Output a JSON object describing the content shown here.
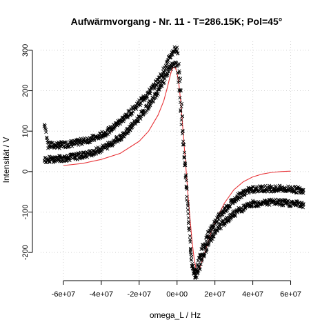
{
  "chart_data": {
    "type": "scatter",
    "title": "Aufwärmvorgang - Nr. 11 - T=286.15K; Pol=45°",
    "xlabel": "omega_L / Hz",
    "ylabel": "Intensität / V",
    "xlim": [
      -72000000,
      70000000
    ],
    "ylim": [
      -268,
      322
    ],
    "x_ticks": [
      -60000000,
      -40000000,
      -20000000,
      0,
      20000000,
      40000000,
      60000000
    ],
    "x_tick_labels": [
      "-6e+07",
      "-4e+07",
      "-2e+07",
      "0e+00",
      "2e+07",
      "4e+07",
      "6e+07"
    ],
    "y_ticks": [
      -200,
      -100,
      0,
      100,
      200,
      300
    ],
    "y_tick_labels": [
      "-200",
      "-100",
      "0",
      "100",
      "200",
      "300"
    ],
    "grid": true,
    "marker": "x",
    "series": [
      {
        "kind": "points",
        "color": "#000000",
        "branches": [
          {
            "x": [
              -70000000,
              -69000000,
              -68000000,
              -66000000,
              -62000000,
              -58000000,
              -54000000,
              -50000000,
              -46000000,
              -42000000,
              -38000000,
              -34000000,
              -30000000,
              -26000000,
              -22000000,
              -18000000,
              -14000000,
              -10000000,
              -7000000,
              -5000000,
              -3000000,
              -1000000,
              0,
              1000000,
              2000000,
              3000000,
              4000000,
              5000000,
              6000000,
              7000000,
              8000000,
              9000000,
              10000000,
              11000000,
              13000000,
              16000000,
              20000000,
              24000000,
              28000000,
              32000000,
              36000000,
              40000000,
              46000000,
              52000000,
              58000000,
              64000000,
              67000000
            ],
            "y": [
              115,
              95,
              65,
              65,
              65,
              68,
              70,
              75,
              80,
              85,
              95,
              108,
              125,
              140,
              160,
              180,
              200,
              225,
              250,
              270,
              290,
              305,
              300,
              265,
              200,
              120,
              40,
              -30,
              -110,
              -180,
              -235,
              -250,
              -248,
              -230,
              -195,
              -160,
              -125,
              -100,
              -80,
              -62,
              -50,
              -44,
              -42,
              -42,
              -43,
              -45,
              -45
            ]
          },
          {
            "x": [
              -70000000,
              -66000000,
              -62000000,
              -58000000,
              -54000000,
              -50000000,
              -46000000,
              -42000000,
              -38000000,
              -34000000,
              -30000000,
              -26000000,
              -22000000,
              -18000000,
              -14000000,
              -10000000,
              -7000000,
              -5000000,
              -3000000,
              -1000000,
              0,
              1000000,
              2000000,
              3000000,
              4000000,
              5000000,
              6000000,
              7000000,
              8000000,
              9000000,
              10000000,
              11000000,
              12000000,
              14000000,
              17000000,
              20000000,
              24000000,
              28000000,
              32000000,
              36000000,
              40000000,
              46000000,
              52000000,
              58000000,
              64000000,
              67000000
            ],
            "y": [
              30,
              30,
              32,
              34,
              37,
              40,
              45,
              52,
              60,
              72,
              85,
              102,
              122,
              145,
              170,
              198,
              225,
              245,
              262,
              268,
              260,
              215,
              150,
              80,
              15,
              -50,
              -120,
              -185,
              -230,
              -255,
              -258,
              -250,
              -235,
              -205,
              -175,
              -150,
              -130,
              -112,
              -98,
              -88,
              -80,
              -76,
              -76,
              -78,
              -80,
              -82
            ]
          }
        ]
      },
      {
        "kind": "line",
        "name": "",
        "color": "#e8363a",
        "x": [
          -60000000,
          -50000000,
          -40000000,
          -30000000,
          -20000000,
          -15000000,
          -10000000,
          -7000000,
          -5000000,
          -4000000,
          -3000000,
          -2000000,
          -1000000,
          0,
          1000000,
          2000000,
          3000000,
          4000000,
          5000000,
          6000000,
          7000000,
          8000000,
          9000000,
          10000000,
          11000000,
          12000000,
          13000000,
          14000000,
          16000000,
          18000000,
          20000000,
          25000000,
          30000000,
          35000000,
          40000000,
          45000000,
          50000000,
          55000000,
          60000000
        ],
        "y": [
          15,
          20,
          30,
          45,
          75,
          100,
          140,
          175,
          210,
          230,
          248,
          258,
          258,
          245,
          215,
          170,
          110,
          50,
          -10,
          -70,
          -125,
          -175,
          -215,
          -240,
          -245,
          -238,
          -225,
          -210,
          -180,
          -150,
          -125,
          -78,
          -45,
          -25,
          -13,
          -6,
          -2,
          0,
          1
        ]
      }
    ]
  }
}
